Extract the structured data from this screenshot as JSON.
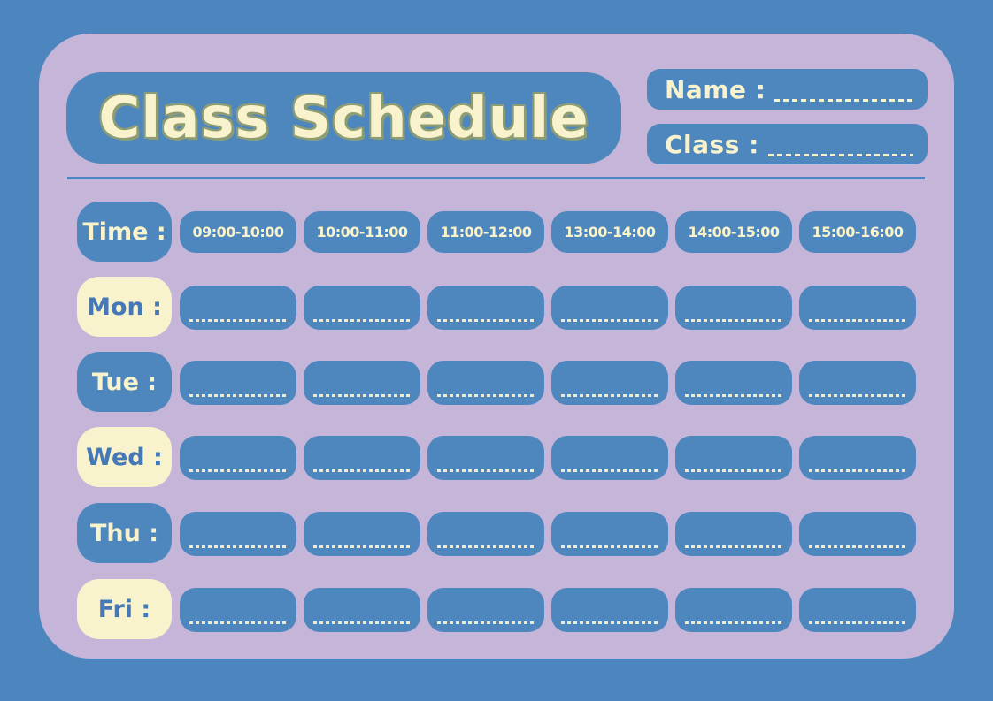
{
  "colors": {
    "background": "#4D86BE",
    "card": "#C4B5D9",
    "box_blue": "#4E87BE",
    "cream": "#F8F3CC",
    "text_blue": "#4478B6",
    "title_shadow": "#8E9C74",
    "dash": "#EDEBD6"
  },
  "header": {
    "title": "Class Schedule",
    "name_label": "Name :",
    "name_value": "",
    "class_label": "Class :",
    "class_value": ""
  },
  "schedule": {
    "time_label": "Time :",
    "time_slots": [
      "09:00-10:00",
      "10:00-11:00",
      "11:00-12:00",
      "13:00-14:00",
      "14:00-15:00",
      "15:00-16:00"
    ],
    "days": [
      {
        "label": "Mon :",
        "entries": [
          "",
          "",
          "",
          "",
          "",
          ""
        ]
      },
      {
        "label": "Tue :",
        "entries": [
          "",
          "",
          "",
          "",
          "",
          ""
        ]
      },
      {
        "label": "Wed :",
        "entries": [
          "",
          "",
          "",
          "",
          "",
          ""
        ]
      },
      {
        "label": "Thu :",
        "entries": [
          "",
          "",
          "",
          "",
          "",
          ""
        ]
      },
      {
        "label": "Fri :",
        "entries": [
          "",
          "",
          "",
          "",
          "",
          ""
        ]
      }
    ]
  }
}
